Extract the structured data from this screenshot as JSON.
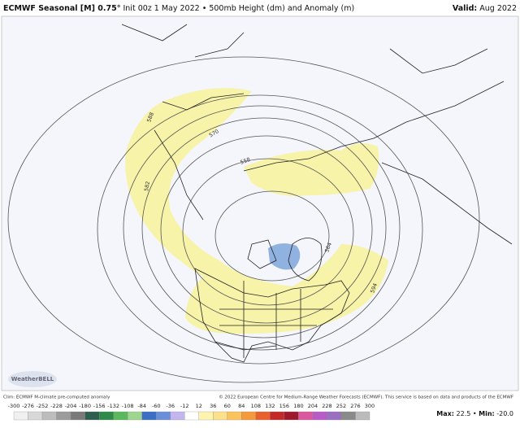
{
  "header": {
    "title_bold": "ECMWF Seasonal [M] 0.75°",
    "title_rest": "Init 00z 1 May 2022 • 500mb Height (dm) and Anomaly (m)",
    "valid_label": "Valid:",
    "valid_value": "Aug 2022"
  },
  "map": {
    "contour_labels": [
      "588",
      "570",
      "558",
      "582",
      "564",
      "594"
    ],
    "logo": "WeatherBELL"
  },
  "footer": {
    "climo": "Clim: ECMWF M-climate pre-computed anomaly",
    "copyright": "© 2022 European Centre for Medium-Range Weather Forecasts (ECMWF). This service is based on data and products of the ECMWF",
    "max_label": "Max:",
    "max_value": "22.5",
    "separator": "•",
    "min_label": "Min:",
    "min_value": "-20.0"
  },
  "colorbar": {
    "labels": [
      -300,
      -276,
      -252,
      -228,
      -204,
      -180,
      -156,
      -132,
      -108,
      -84,
      -60,
      -36,
      -12,
      12,
      36,
      60,
      84,
      108,
      132,
      156,
      180,
      204,
      228,
      252,
      276,
      300
    ],
    "colors": [
      "#f0f0f0",
      "#d8d8d8",
      "#bdbdbd",
      "#9c9c9c",
      "#7a7a7a",
      "#2e5e4e",
      "#2f8a4a",
      "#5cb85c",
      "#9ed68f",
      "#3a6fc4",
      "#6a8fd8",
      "#c3b6ee",
      "#ffffff",
      "#fff3b0",
      "#fde08a",
      "#fbc35c",
      "#f59a3c",
      "#e8602c",
      "#c62828",
      "#9e1a2a",
      "#d9589e",
      "#b85bc7",
      "#9a6fc0",
      "#8a8a8a",
      "#bbbbbb"
    ]
  }
}
